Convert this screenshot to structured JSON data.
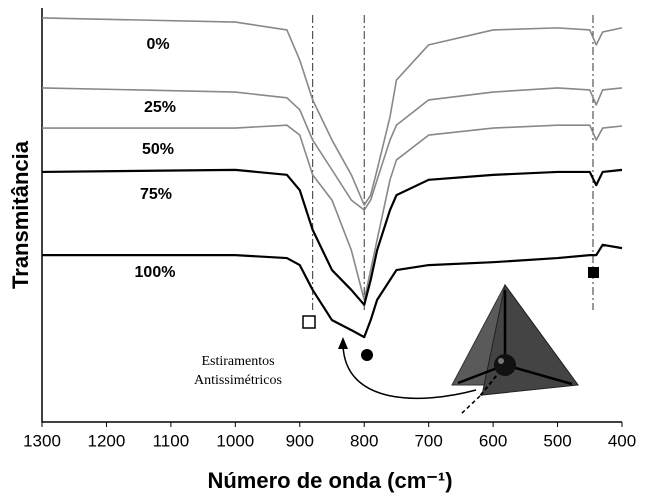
{
  "chart_data": {
    "type": "line",
    "xlabel": "Número de onda (cm⁻¹)",
    "ylabel": "Transmitância",
    "annotation": [
      "Estiramentos",
      "Antissimétricos"
    ],
    "x": [
      1300,
      1000,
      920,
      900,
      880,
      850,
      820,
      800,
      790,
      780,
      760,
      750,
      700,
      600,
      500,
      450,
      440,
      430,
      400
    ],
    "series": [
      {
        "name": "0%",
        "color": "#888888",
        "values": [
          97.6,
          96.6,
          94.7,
          87.4,
          77.8,
          68.1,
          59.7,
          52.4,
          54.8,
          60.9,
          73.7,
          82.6,
          91.1,
          94.7,
          95.2,
          94.7,
          91.1,
          94.2,
          95.2
        ]
      },
      {
        "name": "25%",
        "color": "#888888",
        "values": [
          80.7,
          79.7,
          78.3,
          75.4,
          68.1,
          60.9,
          53.6,
          51.2,
          53.6,
          58.5,
          68.1,
          71.7,
          77.8,
          79.7,
          80.7,
          80.2,
          76.6,
          80.2,
          80.7
        ]
      },
      {
        "name": "50%",
        "color": "#888888",
        "values": [
          71.0,
          71.0,
          71.7,
          69.3,
          59.7,
          53.6,
          41.5,
          29.5,
          36.7,
          44.0,
          58.5,
          63.3,
          69.3,
          71.0,
          71.7,
          71.7,
          68.1,
          71.0,
          71.5
        ]
      },
      {
        "name": "75%",
        "color": "#000000",
        "values": [
          60.4,
          60.9,
          59.7,
          56.0,
          46.4,
          36.7,
          31.9,
          28.3,
          34.3,
          41.5,
          51.2,
          54.8,
          58.5,
          59.7,
          60.4,
          60.4,
          57.2,
          60.4,
          60.9
        ]
      },
      {
        "name": "100%",
        "color": "#000000",
        "values": [
          40.3,
          40.3,
          39.6,
          37.9,
          31.9,
          24.6,
          22.2,
          20.5,
          24.6,
          29.5,
          34.3,
          36.7,
          37.9,
          38.6,
          39.6,
          40.3,
          40.3,
          42.8,
          42.0
        ]
      }
    ],
    "reference_lines": [
      880,
      800,
      445
    ],
    "xlim": [
      1300,
      400
    ],
    "xticks": [
      1300,
      1200,
      1100,
      1000,
      900,
      800,
      700,
      600,
      500,
      400
    ],
    "ylim": [
      0,
      100
    ]
  }
}
